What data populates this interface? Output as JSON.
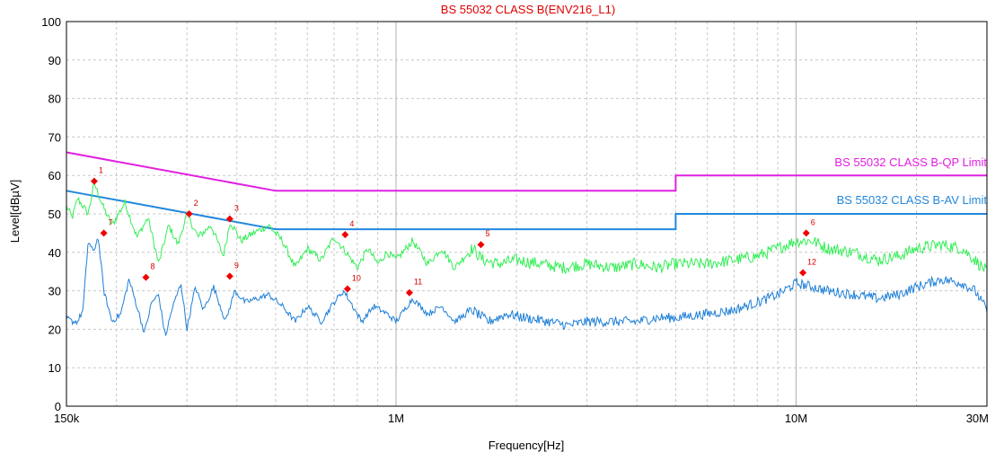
{
  "chart_data": {
    "type": "line",
    "title": "BS 55032 CLASS B(ENV216_L1)",
    "xlabel": "Frequency[Hz]",
    "ylabel": "Level[dBµV]",
    "xscale": "log",
    "xlim": [
      150000,
      30000000
    ],
    "ylim": [
      0,
      100
    ],
    "grid": true,
    "x_tick_labels": [
      {
        "value": 150000,
        "label": "150k"
      },
      {
        "value": 1000000,
        "label": "1M"
      },
      {
        "value": 10000000,
        "label": "10M"
      },
      {
        "value": 30000000,
        "label": "30M"
      }
    ],
    "y_ticks": [
      0,
      10,
      20,
      30,
      40,
      50,
      60,
      70,
      80,
      90,
      100
    ],
    "colors": {
      "qp_limit": "#e020e0",
      "av_limit": "#2288dd",
      "qp_trace": "#33ee55",
      "av_trace": "#1e7fd6",
      "marker": "#ee0000",
      "title": "#e00000",
      "grid": "#c8c8c8"
    },
    "limits": [
      {
        "name": "BS 55032 CLASS B-QP Limit",
        "points": [
          [
            150000,
            66
          ],
          [
            500000,
            56
          ],
          [
            5000000,
            56
          ],
          [
            5000000,
            60
          ],
          [
            30000000,
            60
          ]
        ]
      },
      {
        "name": "BS 55032 CLASS B-AV Limit",
        "points": [
          [
            150000,
            56
          ],
          [
            500000,
            46
          ],
          [
            5000000,
            46
          ],
          [
            5000000,
            50
          ],
          [
            30000000,
            50
          ]
        ]
      }
    ],
    "traces": [
      {
        "id": "qp",
        "points": [
          [
            150000,
            52
          ],
          [
            155000,
            49
          ],
          [
            160000,
            54
          ],
          [
            170000,
            50
          ],
          [
            176000,
            58
          ],
          [
            185000,
            52
          ],
          [
            195000,
            47
          ],
          [
            210000,
            53
          ],
          [
            225000,
            44
          ],
          [
            240000,
            49
          ],
          [
            255000,
            37
          ],
          [
            270000,
            47
          ],
          [
            285000,
            42
          ],
          [
            300000,
            50
          ],
          [
            320000,
            44
          ],
          [
            345000,
            47
          ],
          [
            370000,
            39
          ],
          [
            385000,
            48
          ],
          [
            410000,
            43
          ],
          [
            440000,
            45
          ],
          [
            480000,
            47
          ],
          [
            520000,
            43
          ],
          [
            560000,
            36
          ],
          [
            600000,
            41
          ],
          [
            650000,
            38
          ],
          [
            700000,
            44
          ],
          [
            750000,
            40
          ],
          [
            800000,
            36
          ],
          [
            850000,
            41
          ],
          [
            900000,
            37
          ],
          [
            950000,
            40
          ],
          [
            1000000,
            38
          ],
          [
            1100000,
            43
          ],
          [
            1200000,
            37
          ],
          [
            1300000,
            41
          ],
          [
            1400000,
            36
          ],
          [
            1550000,
            41
          ],
          [
            1650000,
            38
          ],
          [
            1800000,
            37
          ],
          [
            2000000,
            38
          ],
          [
            2300000,
            37
          ],
          [
            2600000,
            36
          ],
          [
            3000000,
            37
          ],
          [
            3500000,
            36
          ],
          [
            4000000,
            37
          ],
          [
            4500000,
            36
          ],
          [
            5000000,
            37
          ],
          [
            6000000,
            37
          ],
          [
            7000000,
            38
          ],
          [
            8000000,
            39
          ],
          [
            9000000,
            41
          ],
          [
            10000000,
            43
          ],
          [
            11000000,
            43
          ],
          [
            12000000,
            41
          ],
          [
            14000000,
            40
          ],
          [
            16000000,
            38
          ],
          [
            18000000,
            39
          ],
          [
            20000000,
            41
          ],
          [
            23000000,
            42
          ],
          [
            26000000,
            41
          ],
          [
            28000000,
            38
          ],
          [
            30000000,
            35
          ]
        ]
      },
      {
        "id": "av",
        "points": [
          [
            150000,
            23
          ],
          [
            155000,
            22
          ],
          [
            160000,
            22
          ],
          [
            165000,
            25
          ],
          [
            170000,
            43
          ],
          [
            175000,
            40
          ],
          [
            180000,
            44
          ],
          [
            186000,
            30
          ],
          [
            195000,
            22
          ],
          [
            205000,
            24
          ],
          [
            215000,
            33
          ],
          [
            225000,
            26
          ],
          [
            235000,
            19
          ],
          [
            245000,
            27
          ],
          [
            255000,
            29
          ],
          [
            265000,
            18
          ],
          [
            275000,
            25
          ],
          [
            290000,
            32
          ],
          [
            300000,
            20
          ],
          [
            315000,
            31
          ],
          [
            330000,
            25
          ],
          [
            350000,
            31
          ],
          [
            375000,
            22
          ],
          [
            395000,
            30
          ],
          [
            420000,
            27
          ],
          [
            450000,
            28
          ],
          [
            480000,
            29
          ],
          [
            520000,
            26
          ],
          [
            560000,
            22
          ],
          [
            600000,
            26
          ],
          [
            650000,
            22
          ],
          [
            700000,
            27
          ],
          [
            740000,
            30
          ],
          [
            780000,
            26
          ],
          [
            820000,
            22
          ],
          [
            880000,
            26
          ],
          [
            950000,
            24
          ],
          [
            1000000,
            22
          ],
          [
            1100000,
            28
          ],
          [
            1200000,
            24
          ],
          [
            1300000,
            26
          ],
          [
            1400000,
            22
          ],
          [
            1550000,
            25
          ],
          [
            1700000,
            22
          ],
          [
            1900000,
            24
          ],
          [
            2100000,
            23
          ],
          [
            2400000,
            22
          ],
          [
            2700000,
            21
          ],
          [
            3000000,
            22
          ],
          [
            3500000,
            22
          ],
          [
            4000000,
            22
          ],
          [
            4500000,
            23
          ],
          [
            5000000,
            23
          ],
          [
            6000000,
            24
          ],
          [
            7000000,
            25
          ],
          [
            8000000,
            27
          ],
          [
            9000000,
            29
          ],
          [
            10000000,
            32
          ],
          [
            11000000,
            31
          ],
          [
            12000000,
            30
          ],
          [
            14000000,
            29
          ],
          [
            16000000,
            28
          ],
          [
            18000000,
            29
          ],
          [
            20000000,
            31
          ],
          [
            23000000,
            33
          ],
          [
            26000000,
            32
          ],
          [
            28000000,
            30
          ],
          [
            30000000,
            25
          ]
        ]
      }
    ],
    "markers": [
      {
        "label": "1",
        "x": 176000,
        "y": 58.5
      },
      {
        "label": "2",
        "x": 304000,
        "y": 50.0
      },
      {
        "label": "3",
        "x": 384000,
        "y": 48.7
      },
      {
        "label": "4",
        "x": 746000,
        "y": 44.6
      },
      {
        "label": "5",
        "x": 1630000,
        "y": 42.0
      },
      {
        "label": "6",
        "x": 10600000,
        "y": 45.0
      },
      {
        "label": "7",
        "x": 186000,
        "y": 45.0
      },
      {
        "label": "8",
        "x": 237000,
        "y": 33.5
      },
      {
        "label": "9",
        "x": 384000,
        "y": 33.8
      },
      {
        "label": "10",
        "x": 756000,
        "y": 30.5
      },
      {
        "label": "11",
        "x": 1080000,
        "y": 29.5
      },
      {
        "label": "12",
        "x": 10400000,
        "y": 34.7
      }
    ]
  }
}
